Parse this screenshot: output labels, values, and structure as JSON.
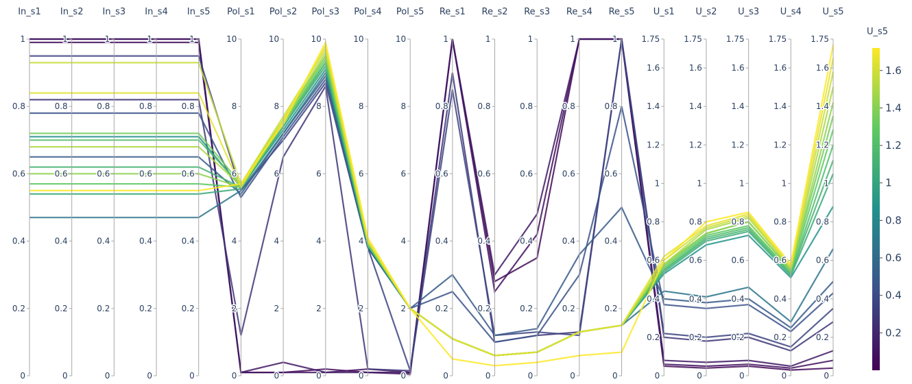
{
  "chart_data": {
    "type": "parallel_coordinates",
    "colorscale": [
      "#440154",
      "#3b528b",
      "#21918c",
      "#5ec962",
      "#fde725"
    ],
    "color_dimension": "U_s5",
    "colorbar": {
      "title": "U_s5",
      "range": [
        0,
        1.72
      ],
      "ticks": [
        0.2,
        0.4,
        0.6,
        0.8,
        1,
        1.2,
        1.4,
        1.6
      ],
      "tick_labels": [
        "0.2",
        "0.4",
        "0.6",
        "0.8",
        "1",
        "1.2",
        "1.4",
        "1.6"
      ]
    },
    "dimensions": [
      {
        "label": "In_s1",
        "range": [
          0,
          1
        ],
        "ticks": [
          0,
          0.2,
          0.4,
          0.6,
          0.8,
          1
        ],
        "tick_labels": [
          "0",
          "0.2",
          "0.4",
          "0.6",
          "0.8",
          "1"
        ]
      },
      {
        "label": "In_s2",
        "range": [
          0,
          1
        ],
        "ticks": [
          0,
          0.2,
          0.4,
          0.6,
          0.8,
          1
        ],
        "tick_labels": [
          "0",
          "0.2",
          "0.4",
          "0.6",
          "0.8",
          "1"
        ]
      },
      {
        "label": "In_s3",
        "range": [
          0,
          1
        ],
        "ticks": [
          0,
          0.2,
          0.4,
          0.6,
          0.8,
          1
        ],
        "tick_labels": [
          "0",
          "0.2",
          "0.4",
          "0.6",
          "0.8",
          "1"
        ]
      },
      {
        "label": "In_s4",
        "range": [
          0,
          1
        ],
        "ticks": [
          0,
          0.2,
          0.4,
          0.6,
          0.8,
          1
        ],
        "tick_labels": [
          "0",
          "0.2",
          "0.4",
          "0.6",
          "0.8",
          "1"
        ]
      },
      {
        "label": "In_s5",
        "range": [
          0,
          1
        ],
        "ticks": [
          0,
          0.2,
          0.4,
          0.6,
          0.8,
          1
        ],
        "tick_labels": [
          "0",
          "0.2",
          "0.4",
          "0.6",
          "0.8",
          "1"
        ]
      },
      {
        "label": "Pol_s1",
        "range": [
          0,
          10
        ],
        "ticks": [
          0,
          2,
          4,
          6,
          8,
          10
        ],
        "tick_labels": [
          "0",
          "2",
          "4",
          "6",
          "8",
          "10"
        ]
      },
      {
        "label": "Pol_s2",
        "range": [
          0,
          10
        ],
        "ticks": [
          0,
          2,
          4,
          6,
          8,
          10
        ],
        "tick_labels": [
          "0",
          "2",
          "4",
          "6",
          "8",
          "10"
        ]
      },
      {
        "label": "Pol_s3",
        "range": [
          0,
          10
        ],
        "ticks": [
          0,
          2,
          4,
          6,
          8,
          10
        ],
        "tick_labels": [
          "0",
          "2",
          "4",
          "6",
          "8",
          "10"
        ]
      },
      {
        "label": "Pol_s4",
        "range": [
          0,
          10
        ],
        "ticks": [
          0,
          2,
          4,
          6,
          8,
          10
        ],
        "tick_labels": [
          "0",
          "2",
          "4",
          "6",
          "8",
          "10"
        ]
      },
      {
        "label": "Pol_s5",
        "range": [
          0,
          10
        ],
        "ticks": [
          0,
          2,
          4,
          6,
          8,
          10
        ],
        "tick_labels": [
          "0",
          "2",
          "4",
          "6",
          "8",
          "10"
        ]
      },
      {
        "label": "Re_s1",
        "range": [
          0,
          1
        ],
        "ticks": [
          0,
          0.2,
          0.4,
          0.6,
          0.8,
          1
        ],
        "tick_labels": [
          "0",
          "0.2",
          "0.4",
          "0.6",
          "0.8",
          "1"
        ]
      },
      {
        "label": "Re_s2",
        "range": [
          0,
          1
        ],
        "ticks": [
          0,
          0.2,
          0.4,
          0.6,
          0.8,
          1
        ],
        "tick_labels": [
          "0",
          "0.2",
          "0.4",
          "0.6",
          "0.8",
          "1"
        ]
      },
      {
        "label": "Re_s3",
        "range": [
          0,
          1
        ],
        "ticks": [
          0,
          0.2,
          0.4,
          0.6,
          0.8,
          1
        ],
        "tick_labels": [
          "0",
          "0.2",
          "0.4",
          "0.6",
          "0.8",
          "1"
        ]
      },
      {
        "label": "Re_s4",
        "range": [
          0,
          1
        ],
        "ticks": [
          0,
          0.2,
          0.4,
          0.6,
          0.8,
          1
        ],
        "tick_labels": [
          "0",
          "0.2",
          "0.4",
          "0.6",
          "0.8",
          "1"
        ]
      },
      {
        "label": "Re_s5",
        "range": [
          0,
          1
        ],
        "ticks": [
          0,
          0.2,
          0.4,
          0.6,
          0.8,
          1
        ],
        "tick_labels": [
          "0",
          "0.2",
          "0.4",
          "0.6",
          "0.8",
          "1"
        ]
      },
      {
        "label": "U_s1",
        "range": [
          0,
          1.75
        ],
        "ticks": [
          0,
          0.2,
          0.4,
          0.6,
          0.8,
          1,
          1.2,
          1.4,
          1.6,
          1.75
        ],
        "tick_labels": [
          "0",
          "0.2",
          "0.4",
          "0.6",
          "0.8",
          "1",
          "1.2",
          "1.4",
          "1.6",
          "1.75"
        ]
      },
      {
        "label": "U_s2",
        "range": [
          0,
          1.75
        ],
        "ticks": [
          0,
          0.2,
          0.4,
          0.6,
          0.8,
          1,
          1.2,
          1.4,
          1.6,
          1.75
        ],
        "tick_labels": [
          "0",
          "0.2",
          "0.4",
          "0.6",
          "0.8",
          "1",
          "1.2",
          "1.4",
          "1.6",
          "1.75"
        ]
      },
      {
        "label": "U_s3",
        "range": [
          0,
          1.75
        ],
        "ticks": [
          0,
          0.2,
          0.4,
          0.6,
          0.8,
          1,
          1.2,
          1.4,
          1.6,
          1.75
        ],
        "tick_labels": [
          "0",
          "0.2",
          "0.4",
          "0.6",
          "0.8",
          "1",
          "1.2",
          "1.4",
          "1.6",
          "1.75"
        ]
      },
      {
        "label": "U_s4",
        "range": [
          0,
          1.75
        ],
        "ticks": [
          0,
          0.2,
          0.4,
          0.6,
          0.8,
          1,
          1.2,
          1.4,
          1.6,
          1.75
        ],
        "tick_labels": [
          "0",
          "0.2",
          "0.4",
          "0.6",
          "0.8",
          "1",
          "1.2",
          "1.4",
          "1.6",
          "1.75"
        ]
      },
      {
        "label": "U_s5",
        "range": [
          0,
          1.75
        ],
        "ticks": [
          0,
          0.2,
          0.4,
          0.6,
          0.8,
          1,
          1.2,
          1.4,
          1.6,
          1.75
        ],
        "tick_labels": [
          "0",
          "0.2",
          "0.4",
          "0.6",
          "0.8",
          "1",
          "1.2",
          "1.4",
          "1.6",
          "1.75"
        ]
      }
    ],
    "lines": [
      {
        "color_value": 1.72,
        "values": [
          0.55,
          0.55,
          0.55,
          0.55,
          0.55,
          5.7,
          7.5,
          9.9,
          4.1,
          2.0,
          0.05,
          0.03,
          0.04,
          0.06,
          0.07,
          0.6,
          0.8,
          0.85,
          0.58,
          1.72
        ]
      },
      {
        "color_value": 1.65,
        "values": [
          0.84,
          0.84,
          0.84,
          0.84,
          0.84,
          5.6,
          7.6,
          9.8,
          4.0,
          2.0,
          0.11,
          0.06,
          0.07,
          0.13,
          0.15,
          0.62,
          0.78,
          0.84,
          0.57,
          1.65
        ]
      },
      {
        "color_value": 1.58,
        "values": [
          0.93,
          0.93,
          0.93,
          0.93,
          0.93,
          5.7,
          7.7,
          9.7,
          4.0,
          2.0,
          0.11,
          0.06,
          0.07,
          0.13,
          0.15,
          0.6,
          0.77,
          0.83,
          0.56,
          1.58
        ]
      },
      {
        "color_value": 1.5,
        "values": [
          0.68,
          0.68,
          0.68,
          0.68,
          0.68,
          5.65,
          7.6,
          9.6,
          4.0,
          2.0,
          0.11,
          0.06,
          0.07,
          0.13,
          0.15,
          0.58,
          0.76,
          0.82,
          0.56,
          1.5
        ]
      },
      {
        "color_value": 1.42,
        "values": [
          0.6,
          0.6,
          0.6,
          0.6,
          0.6,
          5.6,
          7.5,
          9.5,
          3.95,
          2.0,
          0.11,
          0.06,
          0.07,
          0.13,
          0.15,
          0.58,
          0.74,
          0.8,
          0.55,
          1.42
        ]
      },
      {
        "color_value": 1.35,
        "values": [
          0.72,
          0.72,
          0.72,
          0.72,
          0.72,
          5.7,
          7.6,
          9.5,
          3.95,
          2.0,
          0.11,
          0.06,
          0.07,
          0.13,
          0.15,
          0.57,
          0.74,
          0.8,
          0.55,
          1.35
        ]
      },
      {
        "color_value": 1.28,
        "values": [
          0.57,
          0.57,
          0.57,
          0.57,
          0.57,
          5.6,
          7.5,
          9.4,
          3.9,
          2.0,
          0.11,
          0.06,
          0.07,
          0.13,
          0.15,
          0.56,
          0.73,
          0.78,
          0.54,
          1.28
        ]
      },
      {
        "color_value": 1.2,
        "values": [
          0.7,
          0.7,
          0.7,
          0.7,
          0.7,
          5.65,
          7.5,
          9.3,
          3.9,
          2.0,
          0.11,
          0.06,
          0.07,
          0.13,
          0.15,
          0.55,
          0.72,
          0.77,
          0.53,
          1.2
        ]
      },
      {
        "color_value": 1.12,
        "values": [
          0.62,
          0.62,
          0.62,
          0.62,
          0.62,
          5.6,
          7.4,
          9.3,
          3.9,
          2.0,
          0.11,
          0.06,
          0.07,
          0.13,
          0.15,
          0.55,
          0.71,
          0.76,
          0.53,
          1.12
        ]
      },
      {
        "color_value": 1.05,
        "values": [
          0.54,
          0.54,
          0.54,
          0.54,
          0.54,
          5.55,
          7.4,
          9.2,
          3.9,
          2.0,
          0.11,
          0.06,
          0.07,
          0.13,
          0.15,
          0.54,
          0.7,
          0.75,
          0.52,
          1.05
        ]
      },
      {
        "color_value": 0.88,
        "values": [
          0.71,
          0.71,
          0.71,
          0.71,
          0.71,
          5.6,
          7.3,
          9.1,
          3.85,
          2.0,
          0.11,
          0.06,
          0.07,
          0.13,
          0.15,
          0.53,
          0.68,
          0.73,
          0.51,
          0.88
        ]
      },
      {
        "color_value": 0.66,
        "values": [
          0.47,
          0.47,
          0.47,
          0.47,
          0.47,
          5.5,
          7.2,
          9.0,
          3.85,
          2.0,
          0.11,
          0.06,
          0.07,
          0.13,
          0.15,
          0.44,
          0.41,
          0.46,
          0.28,
          0.66
        ]
      },
      {
        "color_value": 0.49,
        "values": [
          0.65,
          0.65,
          0.65,
          0.65,
          0.65,
          5.4,
          7.2,
          8.9,
          3.8,
          2.0,
          0.3,
          0.12,
          0.14,
          0.36,
          0.5,
          0.4,
          0.38,
          0.4,
          0.25,
          0.49
        ]
      },
      {
        "color_value": 0.43,
        "values": [
          0.78,
          0.78,
          0.78,
          0.78,
          0.78,
          5.3,
          7.1,
          8.8,
          3.8,
          2.0,
          0.25,
          0.1,
          0.12,
          0.3,
          0.8,
          0.37,
          0.35,
          0.37,
          0.23,
          0.43
        ]
      },
      {
        "color_value": 0.35,
        "values": [
          0.95,
          0.95,
          0.95,
          0.95,
          0.95,
          5.5,
          7.0,
          8.7,
          3.8,
          0.15,
          0.85,
          0.12,
          0.13,
          0.12,
          1.0,
          0.22,
          0.2,
          0.22,
          0.15,
          0.35
        ]
      },
      {
        "color_value": 0.28,
        "values": [
          0.82,
          0.82,
          0.82,
          0.82,
          0.82,
          1.2,
          6.5,
          8.6,
          0.2,
          0.15,
          0.9,
          0.1,
          0.12,
          0.13,
          1.0,
          0.2,
          0.18,
          0.2,
          0.13,
          0.28
        ]
      },
      {
        "color_value": 0.13,
        "values": [
          1.0,
          1.0,
          1.0,
          1.0,
          1.0,
          0.1,
          0.4,
          0.1,
          0.1,
          0.1,
          1.0,
          0.3,
          0.48,
          1.0,
          1.0,
          0.08,
          0.07,
          0.08,
          0.05,
          0.13
        ]
      },
      {
        "color_value": 0.08,
        "values": [
          0.99,
          0.99,
          0.99,
          0.99,
          0.99,
          0.1,
          0.1,
          0.1,
          0.2,
          0.1,
          1.0,
          0.25,
          0.42,
          1.0,
          1.0,
          0.06,
          0.05,
          0.06,
          0.04,
          0.08
        ]
      },
      {
        "color_value": 0.04,
        "values": [
          1.0,
          1.0,
          1.0,
          1.0,
          1.0,
          0.1,
          0.1,
          0.2,
          0.1,
          0.05,
          1.0,
          0.28,
          0.35,
          1.0,
          1.0,
          0.05,
          0.04,
          0.05,
          0.03,
          0.04
        ]
      }
    ]
  }
}
